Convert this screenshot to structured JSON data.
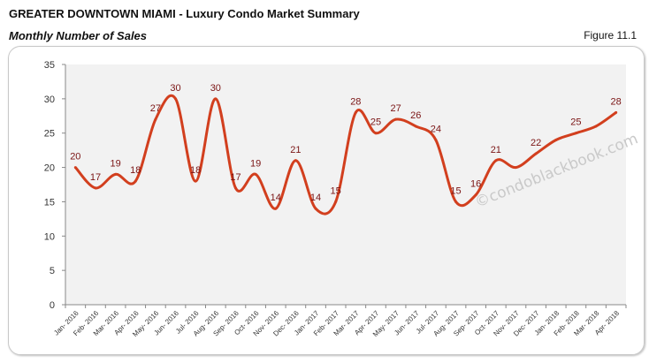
{
  "header": {
    "title": "GREATER DOWNTOWN MIAMI - Luxury Condo Market Summary",
    "subtitle": "Monthly Number of Sales",
    "figure": "Figure 11.1"
  },
  "watermark": "©condoblackbook.com",
  "chart_data": {
    "type": "line",
    "title": "",
    "xlabel": "",
    "ylabel": "",
    "ylim": [
      0,
      35
    ],
    "yticks": [
      0,
      5,
      10,
      15,
      20,
      25,
      30,
      35
    ],
    "grid": false,
    "smooth": true,
    "line_color": "#d23f1e",
    "label_color": "#7a1414",
    "plot_background": "#f2f2f2",
    "categories": [
      "Jan- 2016",
      "Feb- 2016",
      "Mar- 2016",
      "Apr- 2016",
      "May- 2016",
      "Jun- 2016",
      "Jul- 2016",
      "Aug- 2016",
      "Sep- 2016",
      "Oct- 2016",
      "Nov- 2016",
      "Dec- 2016",
      "Jan- 2017",
      "Feb- 2017",
      "Mar- 2017",
      "Apr- 2017",
      "May- 2017",
      "Jun- 2017",
      "Jul- 2017",
      "Aug- 2017",
      "Sep- 2017",
      "Oct- 2017",
      "Nov- 2017",
      "Dec- 2017",
      "Jan- 2018",
      "Feb- 2018",
      "Mar- 2018",
      "Apr- 2018"
    ],
    "values": [
      20,
      17,
      19,
      18,
      27,
      30,
      18,
      30,
      17,
      19,
      14,
      21,
      14,
      15,
      28,
      25,
      27,
      26,
      24,
      15,
      16,
      21,
      20,
      22,
      24,
      25,
      26,
      28
    ],
    "data_labels": [
      "20",
      "17",
      "19",
      "18",
      "27",
      "30",
      "18",
      "30",
      "17",
      "19",
      "14",
      "21",
      "14",
      "15",
      "28",
      "25",
      "27",
      "26",
      "24",
      "15",
      "16",
      "21",
      "",
      "22",
      "",
      "25",
      "",
      "28"
    ]
  }
}
